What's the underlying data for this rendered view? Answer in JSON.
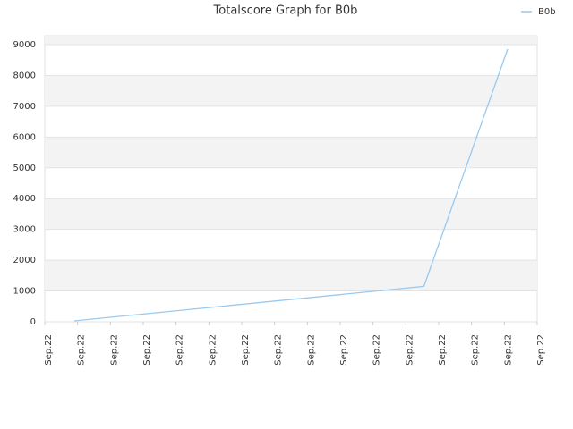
{
  "chart_data": {
    "type": "line",
    "title": "Totalscore Graph for B0b",
    "x": [
      0.9,
      11.55,
      14.1
    ],
    "series": [
      {
        "name": "B0b",
        "color": "#99c9ee",
        "values": [
          30,
          1150,
          8855
        ]
      }
    ],
    "xlim": [
      0,
      15
    ],
    "xticks": [
      {
        "value": 0,
        "label": "Sep.22"
      },
      {
        "value": 1,
        "label": "Sep.22"
      },
      {
        "value": 2,
        "label": "Sep.22"
      },
      {
        "value": 3,
        "label": "Sep.22"
      },
      {
        "value": 4,
        "label": "Sep.22"
      },
      {
        "value": 5,
        "label": "Sep.22"
      },
      {
        "value": 6,
        "label": "Sep.22"
      },
      {
        "value": 7,
        "label": "Sep.22"
      },
      {
        "value": 8,
        "label": "Sep.22"
      },
      {
        "value": 9,
        "label": "Sep.22"
      },
      {
        "value": 10,
        "label": "Sep.22"
      },
      {
        "value": 11,
        "label": "Sep.22"
      },
      {
        "value": 12,
        "label": "Sep.22"
      },
      {
        "value": 13,
        "label": "Sep.22"
      },
      {
        "value": 14,
        "label": "Sep.22"
      },
      {
        "value": 15,
        "label": "Sep.22"
      }
    ],
    "ylim": [
      0,
      9290
    ],
    "yticks": [
      0,
      1000,
      2000,
      3000,
      4000,
      5000,
      6000,
      7000,
      8000,
      9000
    ],
    "grid": true,
    "legend": "top-right"
  }
}
